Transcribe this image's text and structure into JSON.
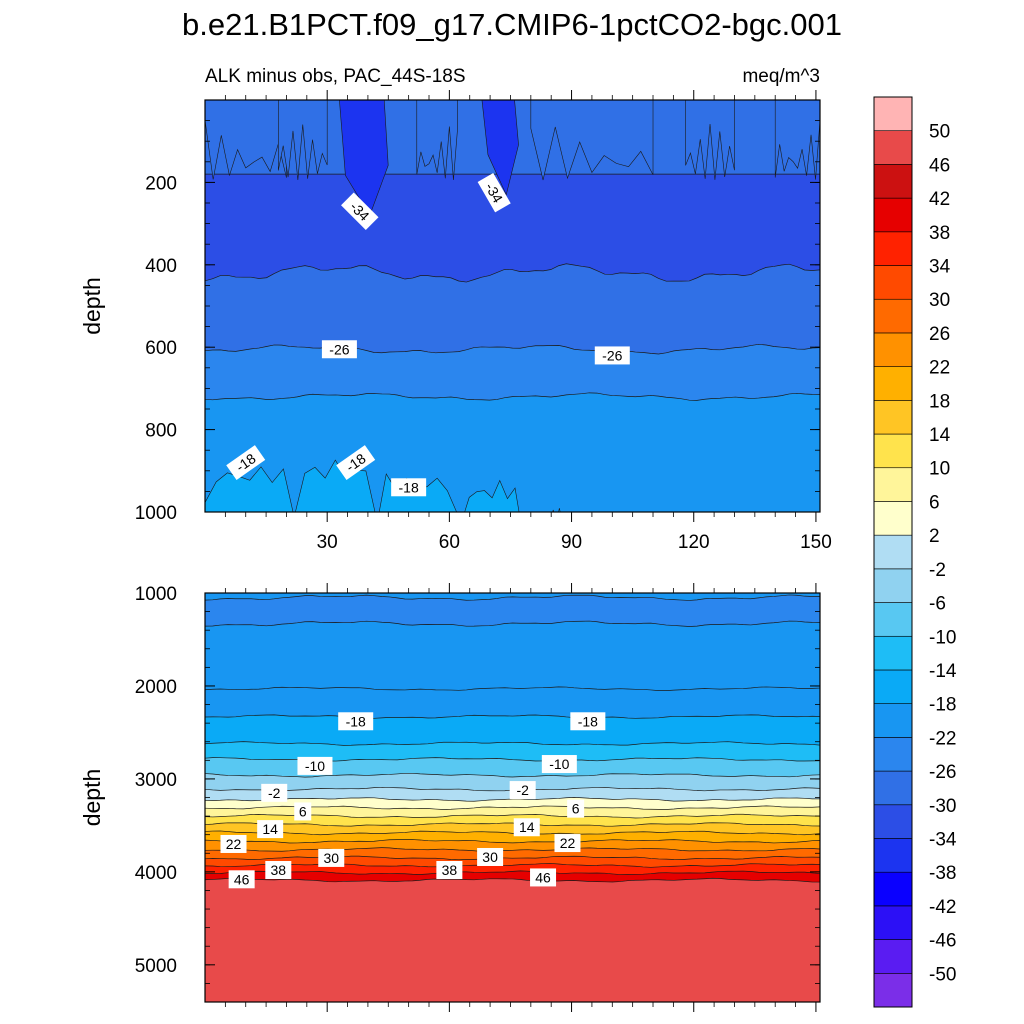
{
  "title": "b.e21.B1PCT.f09_g17.CMIP6-1pctCO2-bgc.001",
  "chart_data": {
    "type": "heatmap",
    "subtitle_left": "ALK minus obs, PAC_44S-18S",
    "subtitle_right": "meq/m^3",
    "colorbar": {
      "levels": [
        -50,
        -46,
        -42,
        -38,
        -34,
        -30,
        -26,
        -22,
        -18,
        -14,
        -10,
        -6,
        -2,
        2,
        6,
        10,
        14,
        18,
        22,
        26,
        30,
        34,
        38,
        42,
        46,
        50
      ],
      "tick_labels": [
        "-50",
        "-46",
        "-42",
        "-38",
        "-34",
        "-30",
        "-26",
        "-22",
        "-18",
        "-14",
        "-10",
        "-6",
        "-2",
        "2",
        "6",
        "10",
        "14",
        "18",
        "22",
        "26",
        "30",
        "34",
        "38",
        "42",
        "46",
        "50"
      ],
      "colors": [
        "#7b2ee8",
        "#5a1cf2",
        "#2c10f6",
        "#0a00ff",
        "#1c34f0",
        "#2c4ee6",
        "#3070e6",
        "#2b86ee",
        "#1896f2",
        "#0aaaf6",
        "#1ebdf6",
        "#58c8f2",
        "#90d2f0",
        "#b0ddf3",
        "#ffffcc",
        "#fff59a",
        "#ffe34c",
        "#ffc524",
        "#ffb000",
        "#ff9100",
        "#ff6a00",
        "#ff4a00",
        "#ff2200",
        "#e60000",
        "#cc1111",
        "#e84a4a",
        "#ffb4b4"
      ]
    },
    "top_panel": {
      "ylabel": "depth",
      "ylim": [
        1000,
        0
      ],
      "xlim": [
        0,
        151
      ],
      "yticks": [
        "200",
        "400",
        "600",
        "800",
        "1000"
      ],
      "xticks": [
        "30",
        "60",
        "90",
        "120",
        "150"
      ],
      "contour_labels": [
        {
          "text": "-34",
          "x": 38,
          "depth": 270
        },
        {
          "text": "-34",
          "x": 71,
          "depth": 225
        },
        {
          "text": "-26",
          "x": 33,
          "depth": 605
        },
        {
          "text": "-26",
          "x": 100,
          "depth": 620
        },
        {
          "text": "-18",
          "x": 10,
          "depth": 880
        },
        {
          "text": "-18",
          "x": 37,
          "depth": 880
        },
        {
          "text": "-18",
          "x": 50,
          "depth": 940
        }
      ]
    },
    "bottom_panel": {
      "ylabel": "depth",
      "ylim": [
        5400,
        1000
      ],
      "xlim": [
        0,
        151
      ],
      "yticks": [
        "1000",
        "2000",
        "3000",
        "4000",
        "5000"
      ],
      "contour_labels": [
        {
          "text": "-18",
          "x": 37,
          "depth": 2380
        },
        {
          "text": "-18",
          "x": 94,
          "depth": 2380
        },
        {
          "text": "-10",
          "x": 27,
          "depth": 2860
        },
        {
          "text": "-10",
          "x": 87,
          "depth": 2840
        },
        {
          "text": "-2",
          "x": 17,
          "depth": 3150
        },
        {
          "text": "-2",
          "x": 78,
          "depth": 3120
        },
        {
          "text": "6",
          "x": 24,
          "depth": 3350
        },
        {
          "text": "6",
          "x": 91,
          "depth": 3320
        },
        {
          "text": "14",
          "x": 16,
          "depth": 3540
        },
        {
          "text": "14",
          "x": 79,
          "depth": 3520
        },
        {
          "text": "22",
          "x": 7,
          "depth": 3700
        },
        {
          "text": "22",
          "x": 89,
          "depth": 3690
        },
        {
          "text": "30",
          "x": 31,
          "depth": 3850
        },
        {
          "text": "30",
          "x": 70,
          "depth": 3840
        },
        {
          "text": "38",
          "x": 18,
          "depth": 3980
        },
        {
          "text": "38",
          "x": 60,
          "depth": 3980
        },
        {
          "text": "46",
          "x": 9,
          "depth": 4080
        },
        {
          "text": "46",
          "x": 83,
          "depth": 4060
        }
      ]
    }
  }
}
